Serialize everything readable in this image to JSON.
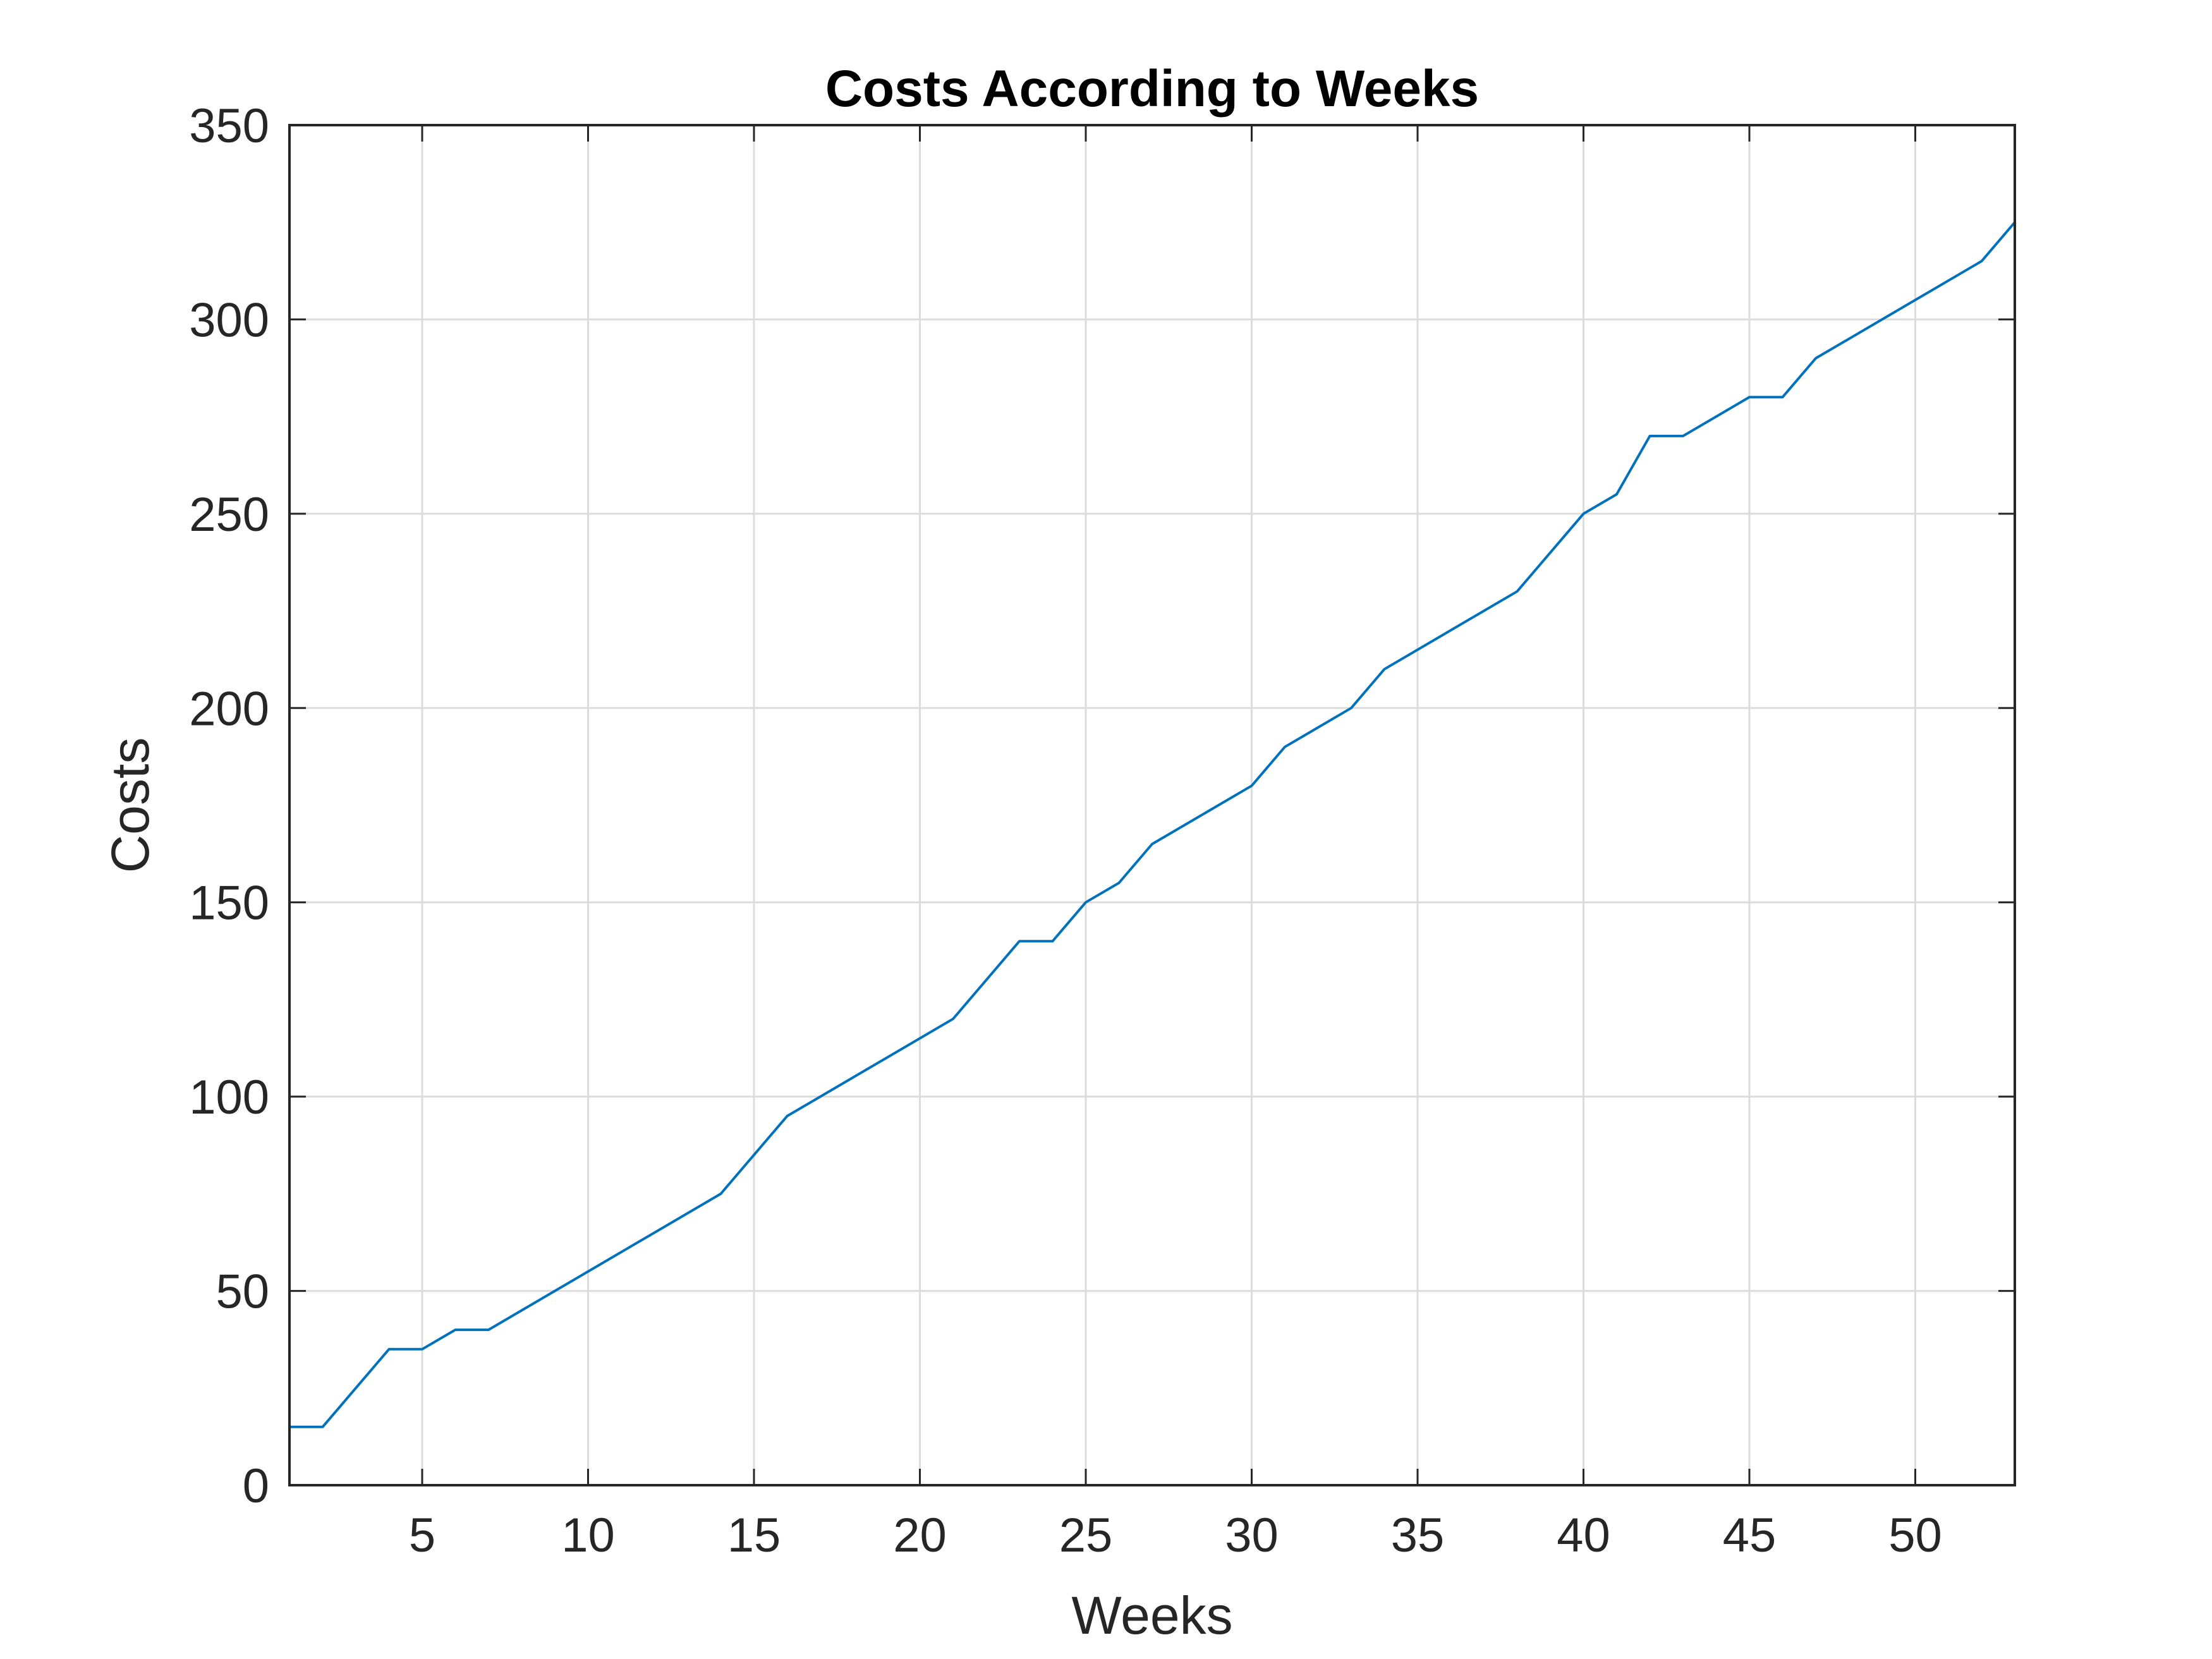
{
  "chart_data": {
    "type": "line",
    "title": "Costs According to Weeks",
    "xlabel": "Weeks",
    "ylabel": "Costs",
    "xlim": [
      1,
      53
    ],
    "ylim": [
      0,
      350
    ],
    "xticks": [
      5,
      10,
      15,
      20,
      25,
      30,
      35,
      40,
      45,
      50
    ],
    "yticks": [
      0,
      50,
      100,
      150,
      200,
      250,
      300,
      350
    ],
    "grid": true,
    "colors": {
      "series": "#0072BD",
      "axis": "#262626",
      "grid": "#dcdcdc"
    },
    "series": [
      {
        "x": [
          1,
          2,
          4,
          5,
          6,
          7,
          14,
          16,
          21,
          23,
          24,
          25,
          26,
          27,
          30,
          31,
          33,
          34,
          38,
          40,
          41,
          42,
          43,
          45,
          46,
          47,
          52,
          53
        ],
        "y": [
          15,
          15,
          35,
          35,
          40,
          40,
          75,
          95,
          120,
          140,
          140,
          150,
          155,
          165,
          180,
          190,
          200,
          210,
          230,
          250,
          255,
          270,
          270,
          280,
          280,
          290,
          315,
          325
        ]
      }
    ]
  }
}
